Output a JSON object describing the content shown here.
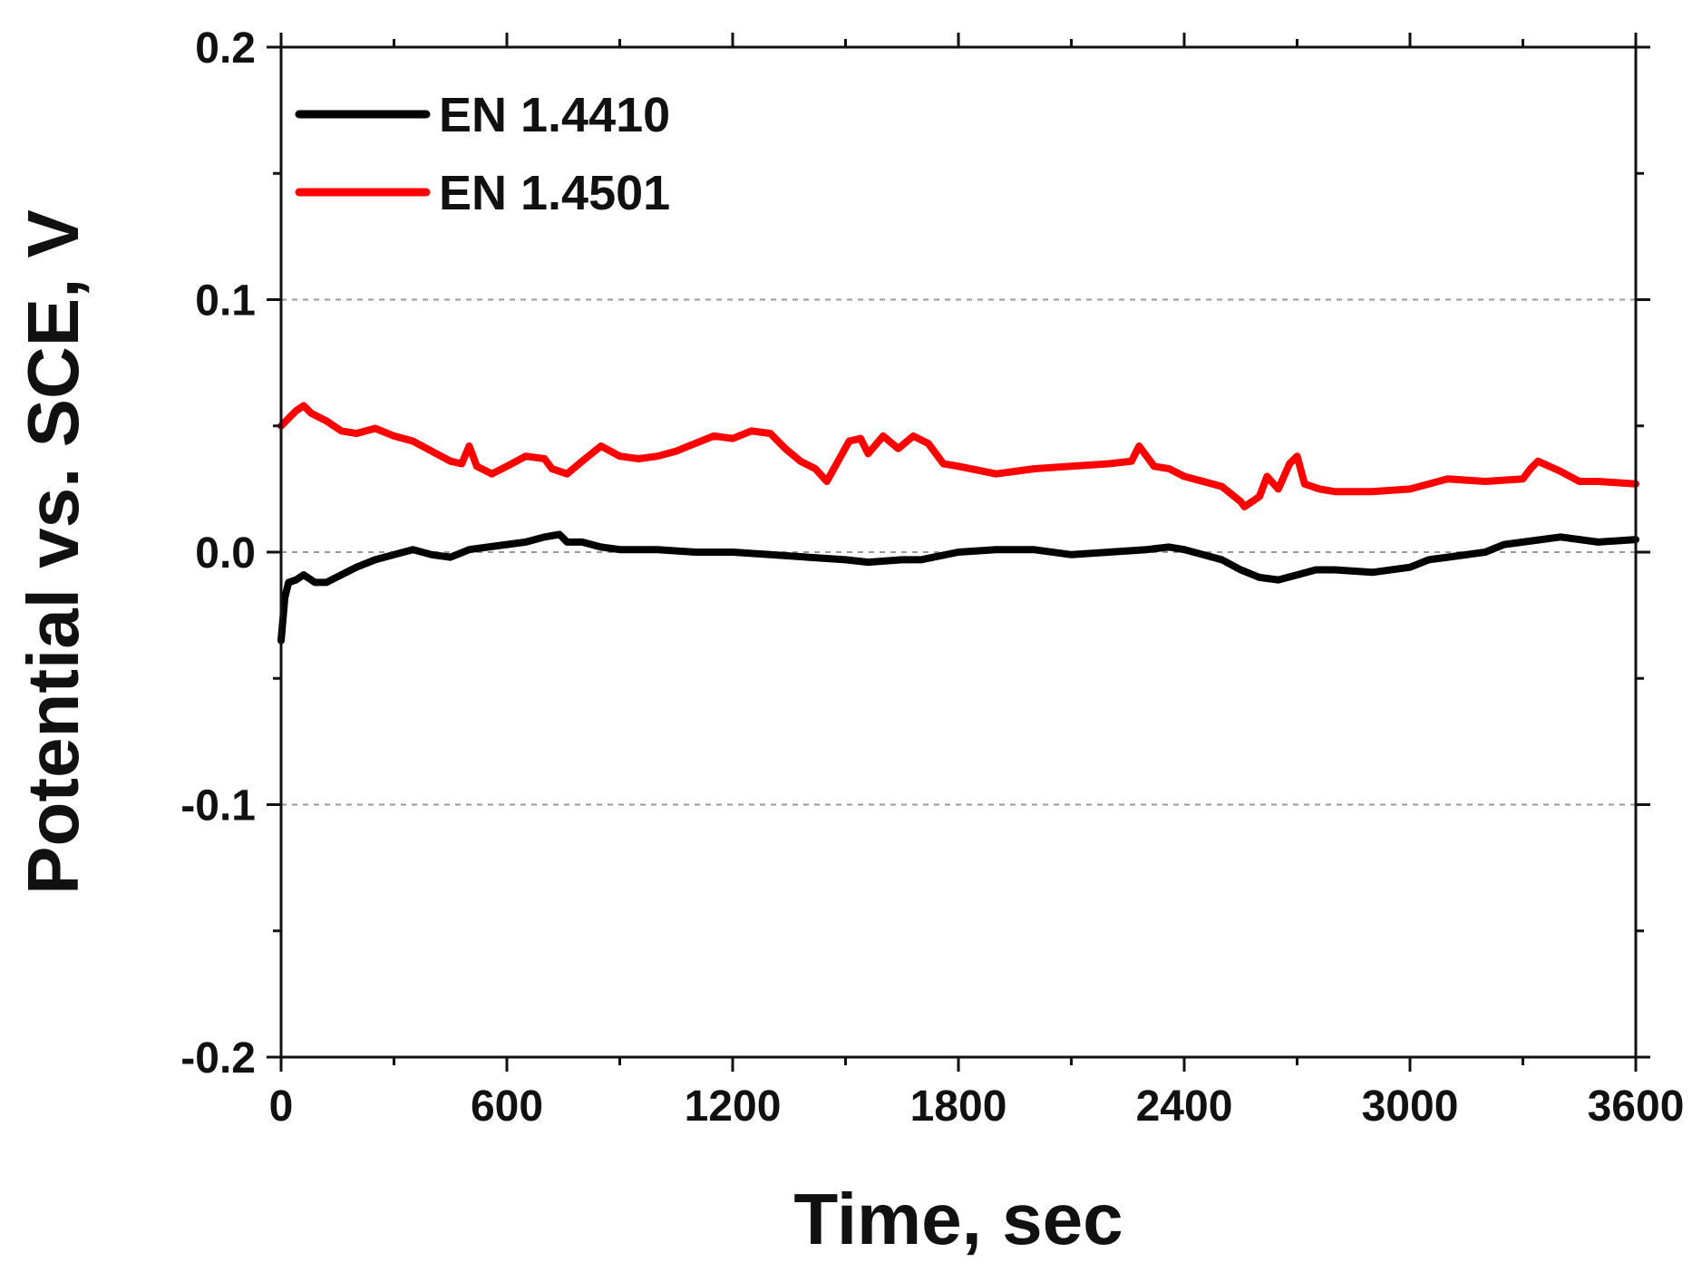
{
  "chart_data": {
    "type": "line",
    "title": "",
    "xlabel": "Time, sec",
    "ylabel": "Potential vs. SCE, V",
    "xlim": [
      0,
      3600
    ],
    "ylim": [
      -0.2,
      0.2
    ],
    "x_ticks": [
      0,
      600,
      1200,
      1800,
      2400,
      3000,
      3600
    ],
    "x_tick_labels": [
      "0",
      "600",
      "1200",
      "1800",
      "2400",
      "3000",
      "3600"
    ],
    "y_ticks": [
      -0.2,
      -0.1,
      0.0,
      0.1,
      0.2
    ],
    "y_tick_labels": [
      "-0.2",
      "-0.1",
      "0.0",
      "0.1",
      "0.2"
    ],
    "grid": "dashed horizontal lines at -0.1, 0.0 and 0.1",
    "legend_position": "top-left",
    "series": [
      {
        "name": "EN 1.4410",
        "color": "#000000",
        "x": [
          0,
          10,
          20,
          40,
          60,
          90,
          120,
          160,
          200,
          250,
          300,
          350,
          400,
          450,
          500,
          550,
          600,
          650,
          700,
          740,
          760,
          800,
          850,
          900,
          1000,
          1100,
          1200,
          1300,
          1400,
          1500,
          1560,
          1650,
          1700,
          1800,
          1900,
          2000,
          2100,
          2200,
          2300,
          2360,
          2400,
          2500,
          2550,
          2600,
          2650,
          2700,
          2750,
          2800,
          2900,
          3000,
          3050,
          3100,
          3200,
          3250,
          3300,
          3400,
          3500,
          3600
        ],
        "y": [
          -0.035,
          -0.018,
          -0.012,
          -0.011,
          -0.009,
          -0.012,
          -0.012,
          -0.009,
          -0.006,
          -0.003,
          -0.001,
          0.001,
          -0.001,
          -0.002,
          0.001,
          0.002,
          0.003,
          0.004,
          0.006,
          0.007,
          0.004,
          0.004,
          0.002,
          0.001,
          0.001,
          0.0,
          0.0,
          -0.001,
          -0.002,
          -0.003,
          -0.004,
          -0.003,
          -0.003,
          0.0,
          0.001,
          0.001,
          -0.001,
          0.0,
          0.001,
          0.002,
          0.001,
          -0.003,
          -0.007,
          -0.01,
          -0.011,
          -0.009,
          -0.007,
          -0.007,
          -0.008,
          -0.006,
          -0.003,
          -0.002,
          0.0,
          0.003,
          0.004,
          0.006,
          0.004,
          0.005
        ]
      },
      {
        "name": "EN 1.4501",
        "color": "#ff0000",
        "x": [
          0,
          20,
          40,
          60,
          80,
          120,
          160,
          200,
          250,
          300,
          350,
          400,
          450,
          480,
          500,
          520,
          560,
          600,
          650,
          700,
          720,
          760,
          800,
          850,
          900,
          950,
          1000,
          1050,
          1100,
          1150,
          1200,
          1250,
          1300,
          1340,
          1380,
          1420,
          1450,
          1480,
          1510,
          1540,
          1560,
          1600,
          1640,
          1680,
          1720,
          1760,
          1800,
          1900,
          2000,
          2100,
          2200,
          2260,
          2280,
          2320,
          2360,
          2400,
          2450,
          2500,
          2550,
          2560,
          2600,
          2620,
          2650,
          2680,
          2700,
          2720,
          2760,
          2800,
          2900,
          3000,
          3050,
          3100,
          3200,
          3300,
          3320,
          3340,
          3400,
          3450,
          3500,
          3600
        ],
        "y": [
          0.05,
          0.053,
          0.056,
          0.058,
          0.055,
          0.052,
          0.048,
          0.047,
          0.049,
          0.046,
          0.044,
          0.04,
          0.036,
          0.035,
          0.042,
          0.034,
          0.031,
          0.034,
          0.038,
          0.037,
          0.033,
          0.031,
          0.036,
          0.042,
          0.038,
          0.037,
          0.038,
          0.04,
          0.043,
          0.046,
          0.045,
          0.048,
          0.047,
          0.041,
          0.036,
          0.033,
          0.028,
          0.036,
          0.044,
          0.045,
          0.039,
          0.046,
          0.041,
          0.046,
          0.043,
          0.035,
          0.034,
          0.031,
          0.033,
          0.034,
          0.035,
          0.036,
          0.042,
          0.034,
          0.033,
          0.03,
          0.028,
          0.026,
          0.02,
          0.018,
          0.022,
          0.03,
          0.025,
          0.035,
          0.038,
          0.027,
          0.025,
          0.024,
          0.024,
          0.025,
          0.027,
          0.029,
          0.028,
          0.029,
          0.033,
          0.036,
          0.032,
          0.028,
          0.028,
          0.027
        ]
      }
    ]
  }
}
